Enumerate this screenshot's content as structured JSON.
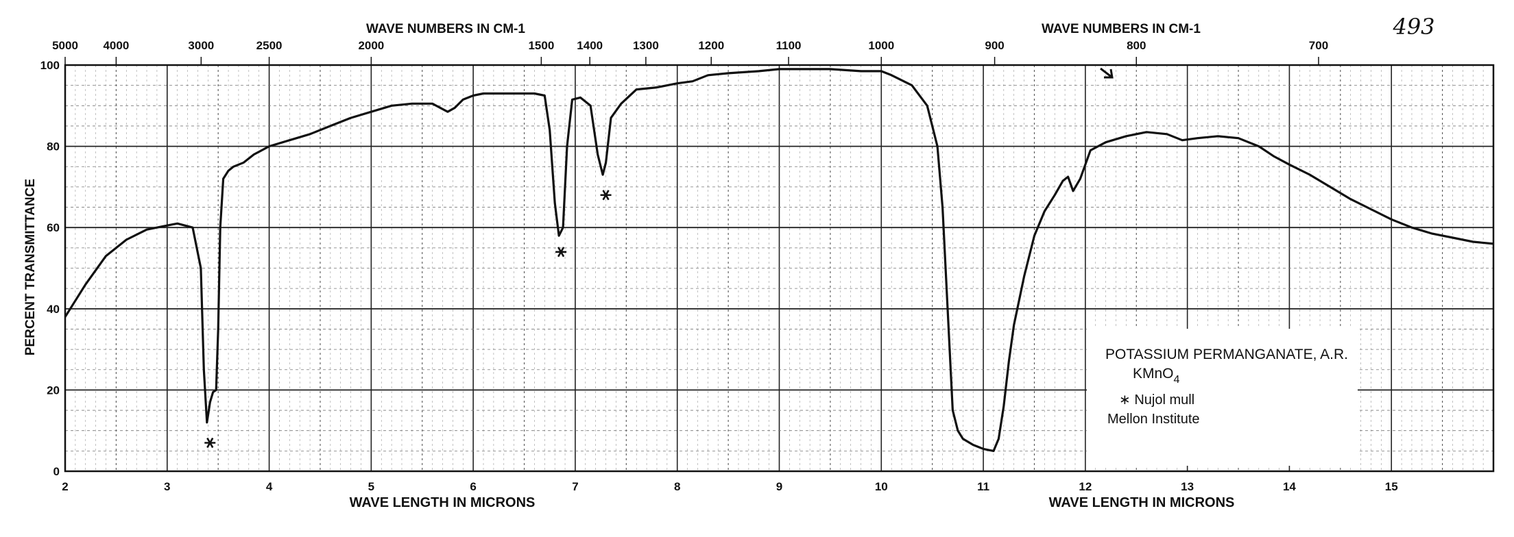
{
  "chart_data": {
    "type": "line",
    "title": "",
    "page_number": "493",
    "top_axis_label_left": "WAVE NUMBERS IN CM-1",
    "top_axis_label_right": "WAVE NUMBERS IN CM-1",
    "xlabel_left": "WAVE LENGTH IN MICRONS",
    "xlabel_right": "WAVE LENGTH IN MICRONS",
    "ylabel": "PERCENT TRANSMITTANCE",
    "xlim": [
      2,
      16
    ],
    "ylim": [
      0,
      100
    ],
    "x_ticks": [
      "2",
      "3",
      "4",
      "5",
      "6",
      "7",
      "8",
      "9",
      "10",
      "11",
      "12",
      "13",
      "14",
      "15"
    ],
    "y_ticks": [
      "0",
      "20",
      "40",
      "60",
      "80",
      "100"
    ],
    "top_ticks": [
      {
        "label": "5000",
        "micron": 2.0
      },
      {
        "label": "4000",
        "micron": 2.5
      },
      {
        "label": "3000",
        "micron": 3.333
      },
      {
        "label": "2500",
        "micron": 4.0
      },
      {
        "label": "2000",
        "micron": 5.0
      },
      {
        "label": "1500",
        "micron": 6.667
      },
      {
        "label": "1400",
        "micron": 7.143
      },
      {
        "label": "1300",
        "micron": 7.692
      },
      {
        "label": "1200",
        "micron": 8.333
      },
      {
        "label": "1100",
        "micron": 9.091
      },
      {
        "label": "1000",
        "micron": 10.0
      },
      {
        "label": "900",
        "micron": 11.111
      },
      {
        "label": "800",
        "micron": 12.5
      },
      {
        "label": "700",
        "micron": 14.286
      }
    ],
    "grid": true,
    "series": [
      {
        "color": "#111111",
        "x": [
          2.0,
          2.2,
          2.4,
          2.6,
          2.8,
          3.0,
          3.1,
          3.25,
          3.33,
          3.36,
          3.39,
          3.42,
          3.45,
          3.48,
          3.5,
          3.52,
          3.55,
          3.6,
          3.65,
          3.75,
          3.85,
          4.0,
          4.2,
          4.4,
          4.6,
          4.8,
          5.0,
          5.2,
          5.4,
          5.6,
          5.75,
          5.82,
          5.9,
          6.0,
          6.1,
          6.2,
          6.4,
          6.6,
          6.7,
          6.75,
          6.8,
          6.84,
          6.88,
          6.92,
          6.97,
          7.05,
          7.15,
          7.22,
          7.27,
          7.3,
          7.35,
          7.45,
          7.6,
          7.8,
          8.0,
          8.15,
          8.3,
          8.5,
          8.8,
          9.0,
          9.2,
          9.5,
          9.8,
          10.0,
          10.1,
          10.3,
          10.45,
          10.55,
          10.6,
          10.65,
          10.7,
          10.75,
          10.8,
          10.9,
          11.0,
          11.1,
          11.15,
          11.2,
          11.25,
          11.3,
          11.4,
          11.5,
          11.6,
          11.7,
          11.78,
          11.83,
          11.88,
          11.95,
          12.05,
          12.2,
          12.4,
          12.6,
          12.8,
          12.95,
          13.1,
          13.3,
          13.5,
          13.7,
          13.85,
          14.0,
          14.2,
          14.4,
          14.6,
          14.8,
          15.0,
          15.2,
          15.4,
          15.6,
          15.8,
          16.0
        ],
        "y": [
          38,
          46,
          53,
          57,
          59.5,
          60.5,
          61,
          60,
          50,
          25,
          12,
          17,
          19.5,
          20,
          35,
          60,
          72,
          74,
          75,
          76,
          78,
          80,
          81.5,
          83,
          85,
          87,
          88.5,
          90,
          90.5,
          90.5,
          88.5,
          89.5,
          91.5,
          92.5,
          93,
          93,
          93,
          93,
          92.5,
          84,
          66,
          58,
          60,
          80,
          91.5,
          92,
          90,
          78,
          73,
          76,
          87,
          90.5,
          94,
          94.5,
          95.5,
          96,
          97.5,
          98,
          98.5,
          99,
          99,
          99,
          98.5,
          98.5,
          97.5,
          95,
          90,
          80,
          65,
          40,
          15,
          10,
          8,
          6.5,
          5.5,
          5,
          8,
          16,
          27,
          36,
          48,
          58,
          64,
          68,
          71.5,
          72.5,
          69,
          72,
          79,
          81,
          82.5,
          83.5,
          83,
          81.5,
          82,
          82.5,
          82,
          80,
          77.5,
          75.5,
          73,
          70,
          67,
          64.5,
          62,
          60,
          58.5,
          57.5,
          56.5,
          56
        ]
      }
    ],
    "asterisks": [
      {
        "x": 3.42,
        "y": 7
      },
      {
        "x": 6.86,
        "y": 54
      },
      {
        "x": 7.3,
        "y": 68
      }
    ],
    "annotation": {
      "line1": "POTASSIUM PERMANGANATE, A.R.",
      "line2_main": "KMnO",
      "line2_sub": "4",
      "line3": "∗ Nujol mull",
      "line4": "Mellon Institute"
    }
  }
}
